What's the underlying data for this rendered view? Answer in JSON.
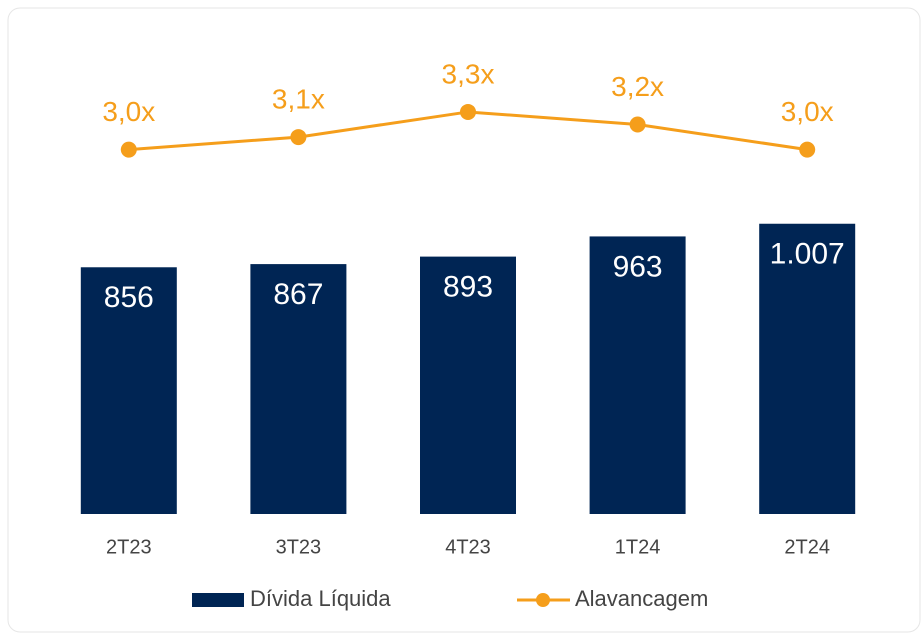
{
  "chart_data": {
    "type": "bar",
    "categories": [
      "2T23",
      "3T23",
      "4T23",
      "1T24",
      "2T24"
    ],
    "series": [
      {
        "name": "Dívida Líquida",
        "type": "bar",
        "color": "#002554",
        "values": [
          856,
          867,
          893,
          963,
          1007
        ],
        "value_labels": [
          "856",
          "867",
          "893",
          "963",
          "1.007"
        ]
      },
      {
        "name": "Alavancagem",
        "type": "line",
        "axis": "y2",
        "color": "#f59e1b",
        "values": [
          3.0,
          3.1,
          3.3,
          3.2,
          3.0
        ],
        "value_labels": [
          "3,0x",
          "3,1x",
          "3,3x",
          "3,2x",
          "3,0x"
        ]
      }
    ],
    "ylim": [
      0,
      1700
    ],
    "y2lim": [
      0.1,
      4.0
    ],
    "legend": "bottom"
  }
}
